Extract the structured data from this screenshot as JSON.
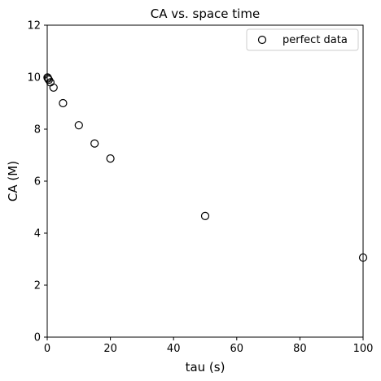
{
  "chart_data": {
    "type": "scatter",
    "title": "CA vs. space time",
    "xlabel": "tau (s)",
    "ylabel": "CA (M)",
    "xlim": [
      0,
      100
    ],
    "ylim": [
      0,
      12
    ],
    "xticks": [
      0,
      20,
      40,
      60,
      80,
      100
    ],
    "yticks": [
      0,
      2,
      4,
      6,
      8,
      10,
      12
    ],
    "grid": false,
    "legend_position": "top-right",
    "marker": "open-circle",
    "marker_color": "#000000",
    "series": [
      {
        "name": "perfect data",
        "points": [
          {
            "x": 0.1,
            "y": 9.99
          },
          {
            "x": 0.25,
            "y": 9.95
          },
          {
            "x": 0.5,
            "y": 9.9
          },
          {
            "x": 1,
            "y": 9.8
          },
          {
            "x": 2,
            "y": 9.6
          },
          {
            "x": 5,
            "y": 9.0
          },
          {
            "x": 10,
            "y": 8.15
          },
          {
            "x": 15,
            "y": 7.45
          },
          {
            "x": 20,
            "y": 6.87
          },
          {
            "x": 50,
            "y": 4.66
          },
          {
            "x": 100,
            "y": 3.06
          }
        ]
      }
    ]
  }
}
